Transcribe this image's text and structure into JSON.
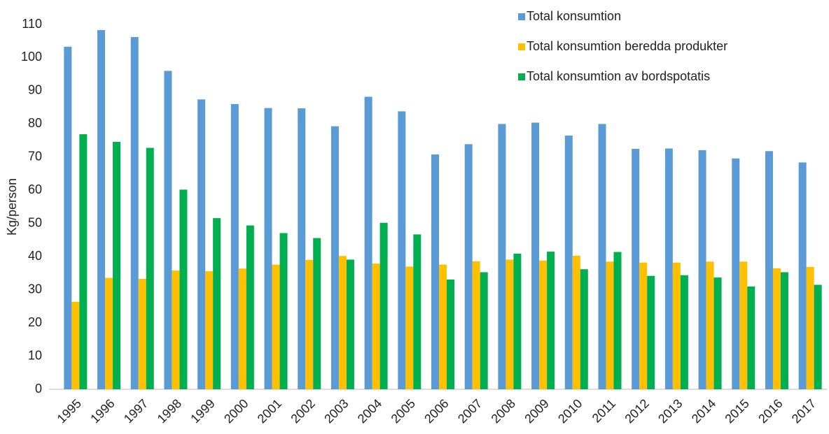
{
  "chart_data": {
    "type": "bar",
    "ylabel": "Kg/person",
    "categories": [
      "1995",
      "1996",
      "1997",
      "1998",
      "1999",
      "2000",
      "2001",
      "2002",
      "2003",
      "2004",
      "2005",
      "2006",
      "2007",
      "2008",
      "2009",
      "2010",
      "2011",
      "2012",
      "2013",
      "2014",
      "2015",
      "2016",
      "2017"
    ],
    "series": [
      {
        "name": "Total konsumtion",
        "color": "#5b9bd5",
        "values": [
          103.3,
          108.3,
          106.2,
          96.0,
          87.4,
          86.0,
          84.8,
          84.7,
          79.3,
          88.2,
          83.8,
          70.8,
          73.9,
          80.0,
          80.4,
          76.5,
          80.0,
          72.5,
          72.6,
          72.1,
          69.6,
          71.8,
          68.4
        ]
      },
      {
        "name": "Total konsumtion beredda produkter",
        "color": "#ffc000",
        "values": [
          26.4,
          33.6,
          33.3,
          35.8,
          35.6,
          36.4,
          37.6,
          39.0,
          40.2,
          37.9,
          37.0,
          37.6,
          38.6,
          39.1,
          38.8,
          40.3,
          38.5,
          38.2,
          38.2,
          38.5,
          38.5,
          36.5,
          36.9
        ]
      },
      {
        "name": "Total konsumtion av bordspotatis",
        "color": "#00b050",
        "values": [
          76.9,
          74.6,
          72.8,
          60.2,
          51.6,
          49.4,
          47.1,
          45.6,
          39.1,
          50.2,
          46.7,
          33.1,
          35.3,
          40.9,
          41.5,
          36.2,
          41.4,
          34.2,
          34.4,
          33.7,
          31.0,
          35.3,
          31.5
        ]
      }
    ],
    "ylim": [
      0,
      110
    ],
    "yticks": [
      0,
      10,
      20,
      30,
      40,
      50,
      60,
      70,
      80,
      90,
      100,
      110
    ],
    "grid": false,
    "legend": "top-right"
  }
}
